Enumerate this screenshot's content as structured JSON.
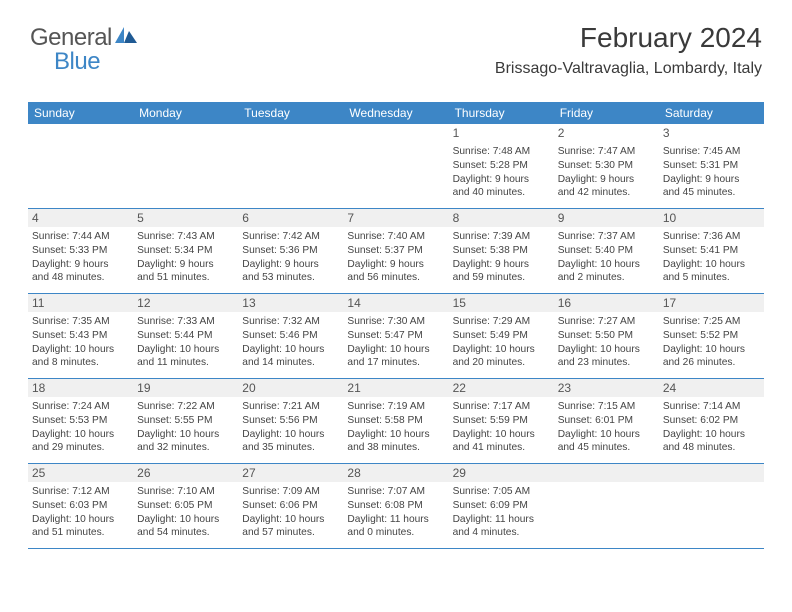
{
  "logo": {
    "word1": "General",
    "word2": "Blue",
    "color_gray": "#555555",
    "color_blue": "#3d86c6"
  },
  "header": {
    "month_title": "February 2024",
    "location": "Brissago-Valtravaglia, Lombardy, Italy"
  },
  "weekdays": [
    "Sunday",
    "Monday",
    "Tuesday",
    "Wednesday",
    "Thursday",
    "Friday",
    "Saturday"
  ],
  "calendar": {
    "first_weekday_index": 4,
    "days": [
      {
        "n": "1",
        "sunrise": "Sunrise: 7:48 AM",
        "sunset": "Sunset: 5:28 PM",
        "daylight1": "Daylight: 9 hours",
        "daylight2": "and 40 minutes."
      },
      {
        "n": "2",
        "sunrise": "Sunrise: 7:47 AM",
        "sunset": "Sunset: 5:30 PM",
        "daylight1": "Daylight: 9 hours",
        "daylight2": "and 42 minutes."
      },
      {
        "n": "3",
        "sunrise": "Sunrise: 7:45 AM",
        "sunset": "Sunset: 5:31 PM",
        "daylight1": "Daylight: 9 hours",
        "daylight2": "and 45 minutes."
      },
      {
        "n": "4",
        "sunrise": "Sunrise: 7:44 AM",
        "sunset": "Sunset: 5:33 PM",
        "daylight1": "Daylight: 9 hours",
        "daylight2": "and 48 minutes."
      },
      {
        "n": "5",
        "sunrise": "Sunrise: 7:43 AM",
        "sunset": "Sunset: 5:34 PM",
        "daylight1": "Daylight: 9 hours",
        "daylight2": "and 51 minutes."
      },
      {
        "n": "6",
        "sunrise": "Sunrise: 7:42 AM",
        "sunset": "Sunset: 5:36 PM",
        "daylight1": "Daylight: 9 hours",
        "daylight2": "and 53 minutes."
      },
      {
        "n": "7",
        "sunrise": "Sunrise: 7:40 AM",
        "sunset": "Sunset: 5:37 PM",
        "daylight1": "Daylight: 9 hours",
        "daylight2": "and 56 minutes."
      },
      {
        "n": "8",
        "sunrise": "Sunrise: 7:39 AM",
        "sunset": "Sunset: 5:38 PM",
        "daylight1": "Daylight: 9 hours",
        "daylight2": "and 59 minutes."
      },
      {
        "n": "9",
        "sunrise": "Sunrise: 7:37 AM",
        "sunset": "Sunset: 5:40 PM",
        "daylight1": "Daylight: 10 hours",
        "daylight2": "and 2 minutes."
      },
      {
        "n": "10",
        "sunrise": "Sunrise: 7:36 AM",
        "sunset": "Sunset: 5:41 PM",
        "daylight1": "Daylight: 10 hours",
        "daylight2": "and 5 minutes."
      },
      {
        "n": "11",
        "sunrise": "Sunrise: 7:35 AM",
        "sunset": "Sunset: 5:43 PM",
        "daylight1": "Daylight: 10 hours",
        "daylight2": "and 8 minutes."
      },
      {
        "n": "12",
        "sunrise": "Sunrise: 7:33 AM",
        "sunset": "Sunset: 5:44 PM",
        "daylight1": "Daylight: 10 hours",
        "daylight2": "and 11 minutes."
      },
      {
        "n": "13",
        "sunrise": "Sunrise: 7:32 AM",
        "sunset": "Sunset: 5:46 PM",
        "daylight1": "Daylight: 10 hours",
        "daylight2": "and 14 minutes."
      },
      {
        "n": "14",
        "sunrise": "Sunrise: 7:30 AM",
        "sunset": "Sunset: 5:47 PM",
        "daylight1": "Daylight: 10 hours",
        "daylight2": "and 17 minutes."
      },
      {
        "n": "15",
        "sunrise": "Sunrise: 7:29 AM",
        "sunset": "Sunset: 5:49 PM",
        "daylight1": "Daylight: 10 hours",
        "daylight2": "and 20 minutes."
      },
      {
        "n": "16",
        "sunrise": "Sunrise: 7:27 AM",
        "sunset": "Sunset: 5:50 PM",
        "daylight1": "Daylight: 10 hours",
        "daylight2": "and 23 minutes."
      },
      {
        "n": "17",
        "sunrise": "Sunrise: 7:25 AM",
        "sunset": "Sunset: 5:52 PM",
        "daylight1": "Daylight: 10 hours",
        "daylight2": "and 26 minutes."
      },
      {
        "n": "18",
        "sunrise": "Sunrise: 7:24 AM",
        "sunset": "Sunset: 5:53 PM",
        "daylight1": "Daylight: 10 hours",
        "daylight2": "and 29 minutes."
      },
      {
        "n": "19",
        "sunrise": "Sunrise: 7:22 AM",
        "sunset": "Sunset: 5:55 PM",
        "daylight1": "Daylight: 10 hours",
        "daylight2": "and 32 minutes."
      },
      {
        "n": "20",
        "sunrise": "Sunrise: 7:21 AM",
        "sunset": "Sunset: 5:56 PM",
        "daylight1": "Daylight: 10 hours",
        "daylight2": "and 35 minutes."
      },
      {
        "n": "21",
        "sunrise": "Sunrise: 7:19 AM",
        "sunset": "Sunset: 5:58 PM",
        "daylight1": "Daylight: 10 hours",
        "daylight2": "and 38 minutes."
      },
      {
        "n": "22",
        "sunrise": "Sunrise: 7:17 AM",
        "sunset": "Sunset: 5:59 PM",
        "daylight1": "Daylight: 10 hours",
        "daylight2": "and 41 minutes."
      },
      {
        "n": "23",
        "sunrise": "Sunrise: 7:15 AM",
        "sunset": "Sunset: 6:01 PM",
        "daylight1": "Daylight: 10 hours",
        "daylight2": "and 45 minutes."
      },
      {
        "n": "24",
        "sunrise": "Sunrise: 7:14 AM",
        "sunset": "Sunset: 6:02 PM",
        "daylight1": "Daylight: 10 hours",
        "daylight2": "and 48 minutes."
      },
      {
        "n": "25",
        "sunrise": "Sunrise: 7:12 AM",
        "sunset": "Sunset: 6:03 PM",
        "daylight1": "Daylight: 10 hours",
        "daylight2": "and 51 minutes."
      },
      {
        "n": "26",
        "sunrise": "Sunrise: 7:10 AM",
        "sunset": "Sunset: 6:05 PM",
        "daylight1": "Daylight: 10 hours",
        "daylight2": "and 54 minutes."
      },
      {
        "n": "27",
        "sunrise": "Sunrise: 7:09 AM",
        "sunset": "Sunset: 6:06 PM",
        "daylight1": "Daylight: 10 hours",
        "daylight2": "and 57 minutes."
      },
      {
        "n": "28",
        "sunrise": "Sunrise: 7:07 AM",
        "sunset": "Sunset: 6:08 PM",
        "daylight1": "Daylight: 11 hours",
        "daylight2": "and 0 minutes."
      },
      {
        "n": "29",
        "sunrise": "Sunrise: 7:05 AM",
        "sunset": "Sunset: 6:09 PM",
        "daylight1": "Daylight: 11 hours",
        "daylight2": "and 4 minutes."
      }
    ]
  },
  "colors": {
    "header_bg": "#3d86c6",
    "row_divider": "#3d86c6",
    "daynum_bg": "#f0f0f0",
    "text": "#444444"
  }
}
